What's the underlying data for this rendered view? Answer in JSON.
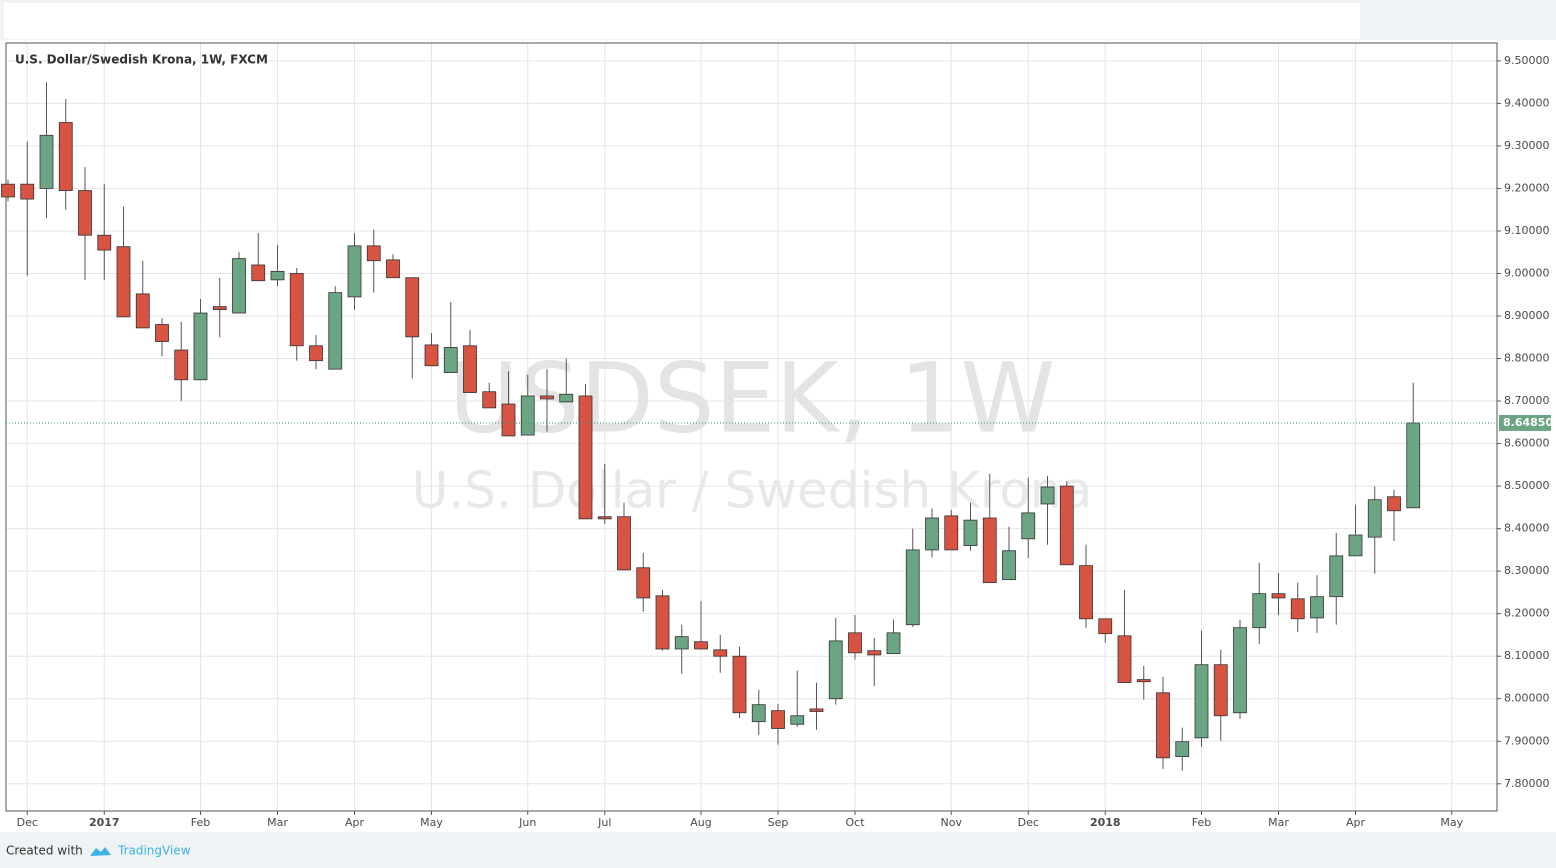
{
  "chart_data": {
    "type": "candlestick",
    "title": "U.S. Dollar/Swedish Krona, 1W, FXCM",
    "watermark": "USDSEK, 1W",
    "watermark_subtitle": "U.S. Dollar / Swedish Krona",
    "footer": {
      "prefix": "Created with",
      "brand": "TradingView"
    },
    "categories": [
      null,
      "Dec",
      null,
      null,
      null,
      "2017",
      null,
      null,
      null,
      null,
      "Feb",
      null,
      null,
      null,
      "Mar",
      null,
      null,
      null,
      "Apr",
      null,
      null,
      null,
      "May",
      null,
      null,
      null,
      null,
      "Jun",
      null,
      null,
      null,
      "Jul",
      null,
      null,
      null,
      null,
      "Aug",
      null,
      null,
      null,
      "Sep",
      null,
      null,
      null,
      "Oct",
      null,
      null,
      null,
      null,
      "Nov",
      null,
      null,
      null,
      "Dec",
      null,
      null,
      null,
      "2018",
      null,
      null,
      null,
      null,
      "Feb",
      null,
      null,
      null,
      "Mar",
      null,
      null,
      null,
      "Apr",
      null,
      null,
      null,
      null,
      "May"
    ],
    "open": [
      9.21,
      9.21,
      9.2,
      9.355,
      9.195,
      9.09,
      9.063,
      8.952,
      8.88,
      8.82,
      8.75,
      8.922,
      8.907,
      9.02,
      8.985,
      9.0,
      8.83,
      8.775,
      8.945,
      9.065,
      9.032,
      8.99,
      8.832,
      8.767,
      8.83,
      8.722,
      8.693,
      8.62,
      8.712,
      8.698,
      8.712,
      8.428,
      8.428,
      8.308,
      8.242,
      8.117,
      8.134,
      8.115,
      8.1,
      7.946,
      7.972,
      7.94,
      7.976,
      8.0,
      8.155,
      8.113,
      8.106,
      8.174,
      8.35,
      8.43,
      8.36,
      8.425,
      8.28,
      8.376,
      8.458,
      8.5,
      8.313,
      8.188,
      8.148,
      8.045,
      8.014,
      7.864,
      7.908,
      8.08,
      7.967,
      8.167,
      8.247,
      8.235,
      8.19,
      8.24,
      8.336,
      8.38,
      8.475,
      8.449,
      null,
      null
    ],
    "high": [
      9.22,
      9.31,
      9.45,
      9.41,
      9.25,
      9.21,
      9.157,
      9.03,
      8.895,
      8.886,
      8.94,
      8.99,
      9.05,
      9.095,
      9.067,
      9.013,
      8.855,
      8.97,
      9.095,
      9.103,
      9.045,
      8.99,
      8.86,
      8.933,
      8.867,
      8.743,
      8.77,
      8.762,
      8.775,
      8.8,
      8.74,
      8.552,
      8.461,
      8.343,
      8.256,
      8.174,
      8.23,
      8.15,
      8.122,
      8.021,
      7.988,
      8.066,
      8.038,
      8.19,
      8.197,
      8.143,
      8.186,
      8.4,
      8.447,
      8.444,
      8.461,
      8.529,
      8.404,
      8.52,
      8.524,
      8.512,
      8.362,
      8.188,
      8.256,
      8.077,
      8.052,
      7.932,
      8.16,
      8.115,
      8.186,
      8.32,
      8.296,
      8.273,
      8.29,
      8.39,
      8.456,
      8.499,
      8.491,
      8.743,
      null,
      null
    ],
    "low": [
      9.17,
      8.995,
      9.13,
      9.15,
      8.985,
      8.985,
      8.898,
      8.872,
      8.805,
      8.7,
      8.75,
      8.85,
      8.907,
      8.983,
      8.97,
      8.795,
      8.775,
      8.775,
      8.915,
      8.955,
      8.99,
      8.753,
      8.783,
      8.767,
      8.72,
      8.684,
      8.618,
      8.62,
      8.628,
      8.698,
      8.423,
      8.411,
      8.303,
      8.205,
      8.113,
      8.059,
      8.117,
      8.061,
      7.955,
      7.915,
      7.892,
      7.934,
      7.927,
      7.986,
      8.092,
      8.03,
      8.106,
      8.169,
      8.332,
      8.35,
      8.348,
      8.273,
      8.28,
      8.331,
      8.362,
      8.315,
      8.167,
      8.132,
      8.038,
      7.998,
      7.835,
      7.831,
      7.887,
      7.901,
      7.953,
      8.129,
      8.197,
      8.157,
      8.155,
      8.174,
      8.336,
      8.294,
      8.371,
      8.449,
      null,
      null
    ],
    "close": [
      9.18,
      9.175,
      9.325,
      9.195,
      9.09,
      9.055,
      8.898,
      8.872,
      8.84,
      8.75,
      8.907,
      8.915,
      9.035,
      8.983,
      9.005,
      8.83,
      8.795,
      8.955,
      9.065,
      9.03,
      8.99,
      8.851,
      8.783,
      8.826,
      8.72,
      8.684,
      8.618,
      8.712,
      8.705,
      8.716,
      8.423,
      8.423,
      8.303,
      8.237,
      8.117,
      8.146,
      8.117,
      8.1,
      7.967,
      7.986,
      7.93,
      7.96,
      7.97,
      8.136,
      8.108,
      8.103,
      8.155,
      8.35,
      8.425,
      8.35,
      8.42,
      8.273,
      8.348,
      8.437,
      8.498,
      8.315,
      8.188,
      8.153,
      8.038,
      8.04,
      7.861,
      7.899,
      8.08,
      7.96,
      8.167,
      8.247,
      8.237,
      8.188,
      8.24,
      8.336,
      8.385,
      8.468,
      8.442,
      8.6485,
      null,
      null
    ],
    "up_color": "#6ba583",
    "down_color": "#d75442",
    "last_price": {
      "value": 8.6485,
      "label": "8.64850"
    },
    "ylim": [
      7.736,
      9.542
    ],
    "yticks": [
      {
        "value": 7.8,
        "label": "7.80000"
      },
      {
        "value": 7.9,
        "label": "7.90000"
      },
      {
        "value": 8.0,
        "label": "8.00000"
      },
      {
        "value": 8.1,
        "label": "8.10000"
      },
      {
        "value": 8.2,
        "label": "8.20000"
      },
      {
        "value": 8.3,
        "label": "8.30000"
      },
      {
        "value": 8.4,
        "label": "8.40000"
      },
      {
        "value": 8.5,
        "label": "8.50000"
      },
      {
        "value": 8.6,
        "label": "8.60000"
      },
      {
        "value": 8.7,
        "label": "8.70000"
      },
      {
        "value": 8.8,
        "label": "8.80000"
      },
      {
        "value": 8.9,
        "label": "8.90000"
      },
      {
        "value": 9.0,
        "label": "9.00000"
      },
      {
        "value": 9.1,
        "label": "9.10000"
      },
      {
        "value": 9.2,
        "label": "9.20000"
      },
      {
        "value": 9.3,
        "label": "9.30000"
      },
      {
        "value": 9.4,
        "label": "9.40000"
      },
      {
        "value": 9.5,
        "label": "9.50000"
      }
    ],
    "grid": true
  }
}
